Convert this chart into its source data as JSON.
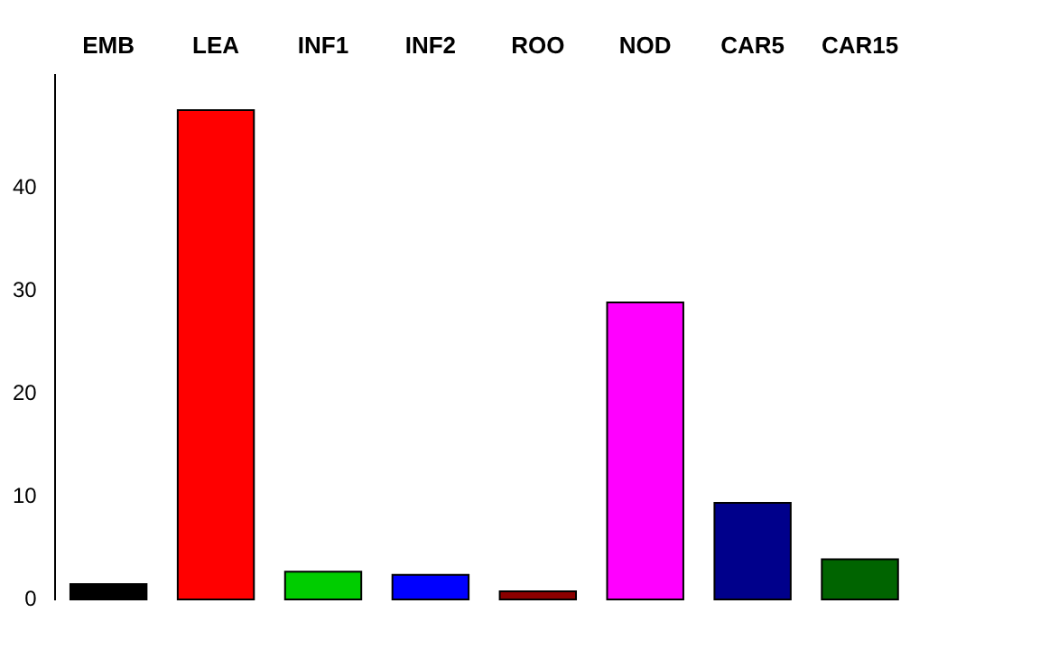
{
  "chart_data": {
    "type": "bar",
    "categories": [
      "EMB",
      "LEA",
      "INF1",
      "INF2",
      "ROO",
      "NOD",
      "CAR5",
      "CAR15"
    ],
    "values": [
      1.5,
      47.6,
      2.7,
      2.4,
      0.8,
      28.9,
      9.4,
      3.9
    ],
    "colors": [
      "#000000",
      "#ff0000",
      "#00cd00",
      "#0000ff",
      "#8b0000",
      "#ff00ff",
      "#00008b",
      "#006400"
    ],
    "ylim": [
      0,
      51
    ],
    "yticks": [
      0,
      10,
      20,
      30,
      40
    ],
    "grid": false,
    "legend": false
  }
}
